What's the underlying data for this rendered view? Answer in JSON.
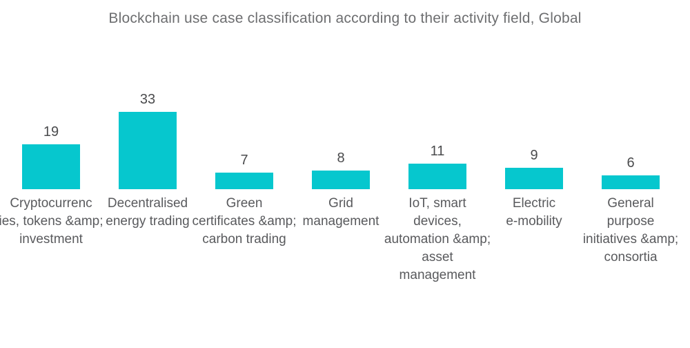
{
  "chart_data": {
    "type": "bar",
    "title": "Blockchain use case classification according to their activity field, Global",
    "categories": [
      "Cryptocurrencies, tokens &amp; investment",
      "Decentralised energy trading",
      "Green certificates &amp; carbon trading",
      "Grid management",
      "IoT, smart devices, automation &amp; asset management",
      "Electric e-mobility",
      "General purpose initiatives &amp; consortia"
    ],
    "category_lines": [
      [
        "Cryptocurrenc",
        "ies, tokens &amp;",
        "investment"
      ],
      [
        "Decentralised",
        "energy trading"
      ],
      [
        "Green",
        "certificates &amp;",
        "carbon trading"
      ],
      [
        "Grid",
        "management"
      ],
      [
        "IoT, smart",
        "devices,",
        "automation &amp;",
        "asset",
        "management"
      ],
      [
        "Electric",
        "e-mobility"
      ],
      [
        "General",
        "purpose",
        "initiatives &amp;",
        "consortia"
      ]
    ],
    "values": [
      19,
      33,
      7,
      8,
      11,
      9,
      6
    ],
    "xlabel": "",
    "ylabel": "",
    "ylim": [
      0,
      35
    ],
    "grid": false,
    "axes_visible": false,
    "legend": "none",
    "value_labels_position": "above-bars",
    "bar_color": "#06c7ce"
  },
  "colors": {
    "bar": "#06c7ce",
    "title_text": "#6d6e70",
    "value_text": "#4a4b4d",
    "category_text": "#595a5d",
    "background": "#ffffff"
  }
}
